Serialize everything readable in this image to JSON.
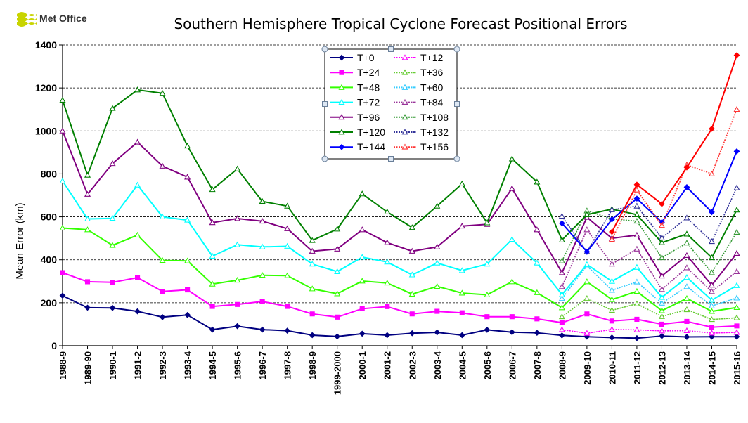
{
  "logo": {
    "text": "Met Office"
  },
  "chart_data": {
    "type": "line",
    "title": "Southern Hemisphere Tropical Cyclone Forecast Positional Errors",
    "xlabel": "",
    "ylabel": "Mean Error (km)",
    "ylim": [
      0,
      1400
    ],
    "yticks": [
      0,
      200,
      400,
      600,
      800,
      1000,
      1200,
      1400
    ],
    "grid": "horizontal dashed",
    "legend_position": "top-center",
    "categories": [
      "1988-9",
      "1989-90",
      "1990-1",
      "1991-2",
      "1992-3",
      "1993-4",
      "1994-5",
      "1995-6",
      "1996-7",
      "1997-8",
      "1998-9",
      "1999-2000",
      "2000-1",
      "2001-2",
      "2002-3",
      "2003-4",
      "2004-5",
      "2005-6",
      "2006-7",
      "2007-8",
      "2008-9",
      "2009-10",
      "2010-11",
      "2011-12",
      "2012-13",
      "2013-14",
      "2014-15",
      "2015-16"
    ],
    "series": [
      {
        "name": "T+0",
        "color": "#000080",
        "dashed": false,
        "marker": "diamond",
        "values": [
          233,
          177,
          176,
          160,
          133,
          143,
          75,
          91,
          75,
          70,
          49,
          43,
          56,
          49,
          58,
          62,
          49,
          74,
          63,
          60,
          48,
          42,
          38,
          35,
          45,
          41,
          42,
          42
        ]
      },
      {
        "name": "T+12",
        "color": "#FF00FF",
        "dashed": true,
        "marker": "triangle",
        "values": [
          null,
          null,
          null,
          null,
          null,
          null,
          null,
          null,
          null,
          null,
          null,
          null,
          null,
          null,
          null,
          null,
          null,
          null,
          null,
          null,
          75,
          58,
          76,
          74,
          69,
          70,
          59,
          62
        ]
      },
      {
        "name": "T+24",
        "color": "#FF00FF",
        "dashed": false,
        "marker": "square",
        "values": [
          340,
          298,
          295,
          317,
          253,
          260,
          183,
          192,
          206,
          183,
          148,
          133,
          172,
          182,
          148,
          160,
          153,
          135,
          135,
          125,
          107,
          148,
          115,
          123,
          100,
          113,
          86,
          92
        ]
      },
      {
        "name": "T+36",
        "color": "#66CC33",
        "dashed": true,
        "marker": "triangle",
        "values": [
          null,
          null,
          null,
          null,
          null,
          null,
          null,
          null,
          null,
          null,
          null,
          null,
          null,
          null,
          null,
          null,
          null,
          null,
          null,
          null,
          135,
          220,
          165,
          195,
          136,
          168,
          122,
          130
        ]
      },
      {
        "name": "T+48",
        "color": "#33FF00",
        "dashed": false,
        "marker": "triangle",
        "values": [
          548,
          540,
          467,
          515,
          397,
          395,
          287,
          305,
          328,
          326,
          265,
          242,
          301,
          292,
          240,
          276,
          245,
          237,
          298,
          247,
          177,
          298,
          215,
          253,
          163,
          220,
          160,
          178
        ]
      },
      {
        "name": "T+60",
        "color": "#33CCFF",
        "dashed": true,
        "marker": "triangle",
        "values": [
          null,
          null,
          null,
          null,
          null,
          null,
          null,
          null,
          null,
          null,
          null,
          null,
          null,
          null,
          null,
          null,
          null,
          null,
          null,
          null,
          220,
          372,
          258,
          297,
          198,
          275,
          185,
          222
        ]
      },
      {
        "name": "T+72",
        "color": "#00FFFF",
        "dashed": false,
        "marker": "triangle",
        "values": [
          767,
          590,
          593,
          748,
          600,
          585,
          417,
          470,
          460,
          463,
          380,
          345,
          412,
          390,
          330,
          385,
          350,
          380,
          495,
          385,
          238,
          378,
          300,
          365,
          225,
          318,
          212,
          280
        ]
      },
      {
        "name": "T+84",
        "color": "#993399",
        "dashed": true,
        "marker": "triangle",
        "values": [
          null,
          null,
          null,
          null,
          null,
          null,
          null,
          null,
          null,
          null,
          null,
          null,
          null,
          null,
          null,
          null,
          null,
          null,
          null,
          null,
          275,
          540,
          380,
          450,
          262,
          363,
          252,
          345
        ]
      },
      {
        "name": "T+96",
        "color": "#800080",
        "dashed": false,
        "marker": "triangle",
        "values": [
          1000,
          705,
          848,
          948,
          836,
          785,
          573,
          592,
          580,
          545,
          440,
          450,
          540,
          480,
          440,
          460,
          557,
          565,
          732,
          540,
          340,
          598,
          500,
          515,
          325,
          420,
          282,
          430
        ]
      },
      {
        "name": "T+108",
        "color": "#339933",
        "dashed": true,
        "marker": "triangle",
        "values": [
          null,
          null,
          null,
          null,
          null,
          null,
          null,
          null,
          null,
          null,
          null,
          null,
          null,
          null,
          null,
          null,
          null,
          null,
          null,
          null,
          395,
          628,
          590,
          580,
          410,
          478,
          340,
          528
        ]
      },
      {
        "name": "T+120",
        "color": "#008000",
        "dashed": false,
        "marker": "triangle",
        "values": [
          1143,
          794,
          1105,
          1191,
          1175,
          930,
          727,
          823,
          672,
          650,
          490,
          543,
          707,
          623,
          550,
          650,
          754,
          572,
          870,
          762,
          492,
          610,
          636,
          610,
          480,
          520,
          410,
          632
        ]
      },
      {
        "name": "T+132",
        "color": "#333399",
        "dashed": true,
        "marker": "triangle",
        "values": [
          null,
          null,
          null,
          null,
          null,
          null,
          null,
          null,
          null,
          null,
          null,
          null,
          null,
          null,
          null,
          null,
          null,
          null,
          null,
          null,
          603,
          437,
          633,
          650,
          502,
          595,
          485,
          735
        ]
      },
      {
        "name": "T+144",
        "color": "#0000FF",
        "dashed": false,
        "marker": "diamond",
        "values": [
          null,
          null,
          null,
          null,
          null,
          null,
          null,
          null,
          null,
          null,
          null,
          null,
          null,
          null,
          null,
          null,
          null,
          null,
          null,
          null,
          570,
          437,
          588,
          685,
          575,
          738,
          622,
          905
        ]
      },
      {
        "name": "T+156",
        "color": "#FF3333",
        "dashed": true,
        "marker": "triangle",
        "values": [
          null,
          null,
          null,
          null,
          null,
          null,
          null,
          null,
          null,
          null,
          null,
          null,
          null,
          null,
          null,
          null,
          null,
          null,
          null,
          null,
          null,
          null,
          495,
          725,
          560,
          842,
          800,
          1100
        ]
      },
      {
        "name": "",
        "color": "#FF0000",
        "dashed": false,
        "marker": "diamond",
        "values": [
          null,
          null,
          null,
          null,
          null,
          null,
          null,
          null,
          null,
          null,
          null,
          null,
          null,
          null,
          null,
          null,
          null,
          null,
          null,
          null,
          null,
          null,
          530,
          750,
          660,
          830,
          1010,
          1352
        ]
      }
    ]
  }
}
